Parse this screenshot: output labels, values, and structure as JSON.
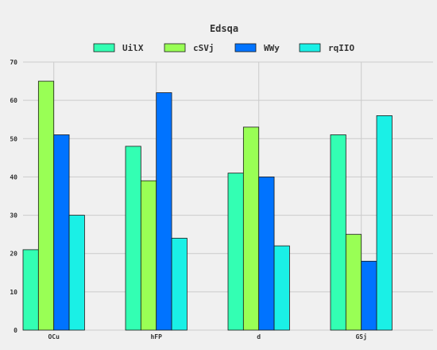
{
  "chart_data": {
    "type": "bar",
    "title": "Edsqa",
    "categories": [
      "OCu",
      "hFP",
      "d",
      "GSj"
    ],
    "series": [
      {
        "name": "UilX",
        "color": "#33ffb3",
        "values": [
          21,
          48,
          41,
          51
        ]
      },
      {
        "name": "cSVj",
        "color": "#99ff55",
        "values": [
          65,
          39,
          53,
          25
        ]
      },
      {
        "name": "WWy",
        "color": "#0073ff",
        "values": [
          51,
          62,
          40,
          18
        ]
      },
      {
        "name": "rqIIO",
        "color": "#1af0e6",
        "values": [
          30,
          24,
          22,
          56
        ]
      }
    ],
    "xlabel": "",
    "ylabel": "",
    "ylim": [
      0,
      70
    ],
    "yticks": [
      0,
      10,
      20,
      30,
      40,
      50,
      60,
      70
    ],
    "grid": true,
    "legend_position": "top-center"
  }
}
